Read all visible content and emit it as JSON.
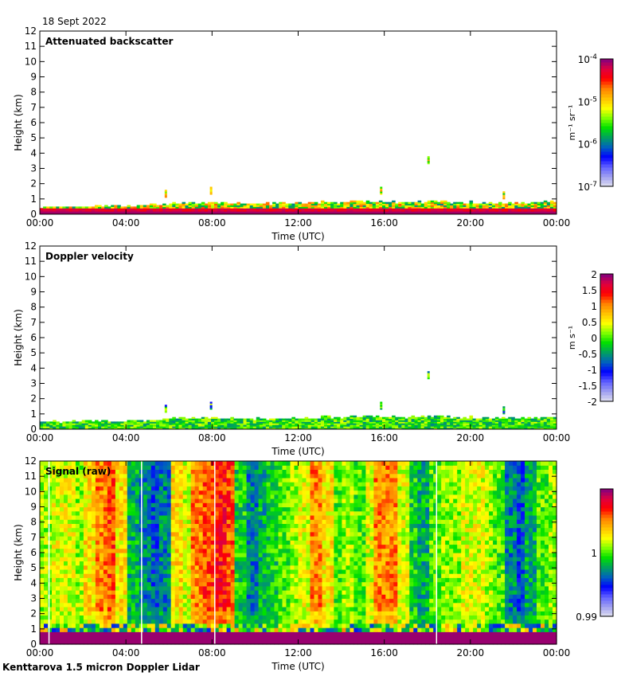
{
  "date_label": "18 Sept 2022",
  "footer": "Kenttarova 1.5 micron Doppler Lidar",
  "colors": {
    "colormap_high_to_low": [
      "#800080",
      "#e00040",
      "#ff0000",
      "#ff8000",
      "#ffc000",
      "#ffff00",
      "#80ff00",
      "#00e000",
      "#00a060",
      "#0060c0",
      "#0000ff",
      "#6060ff",
      "#a0a0f0",
      "#e0e0f0"
    ]
  },
  "chart_data": [
    {
      "type": "heatmap",
      "title": "Attenuated backscatter",
      "xlabel": "Time (UTC)",
      "ylabel": "Height (km)",
      "xticks": [
        "00:00",
        "04:00",
        "08:00",
        "12:00",
        "16:00",
        "20:00",
        "00:00"
      ],
      "yticks": [
        "0",
        "1",
        "2",
        "3",
        "4",
        "5",
        "6",
        "7",
        "8",
        "9",
        "10",
        "11",
        "12"
      ],
      "ylim": [
        0,
        12
      ],
      "xlim_hours": [
        0,
        24
      ],
      "colorbar": {
        "scale": "log",
        "range": [
          1e-07,
          0.0001
        ],
        "ticks": [
          "10-7",
          "10-6",
          "10-5",
          "10-4"
        ],
        "unit": "m-1 sr-1"
      },
      "boundary_layer_top_km_hourly": [
        0.45,
        0.45,
        0.5,
        0.5,
        0.55,
        0.6,
        0.7,
        0.7,
        0.7,
        0.65,
        0.65,
        0.7,
        0.7,
        0.75,
        0.8,
        0.8,
        0.75,
        0.75,
        0.8,
        0.75,
        0.7,
        0.7,
        0.7,
        0.75
      ],
      "cloud_features": [
        {
          "time_h": 5.8,
          "top_km": 1.6
        },
        {
          "time_h": 7.9,
          "top_km": 1.8
        },
        {
          "time_h": 15.8,
          "top_km": 1.8
        },
        {
          "time_h": 18.0,
          "top_km": 3.8
        },
        {
          "time_h": 21.5,
          "top_km": 1.5
        }
      ]
    },
    {
      "type": "heatmap",
      "title": "Doppler velocity",
      "xlabel": "Time (UTC)",
      "ylabel": "Height (km)",
      "xticks": [
        "00:00",
        "04:00",
        "08:00",
        "12:00",
        "16:00",
        "20:00",
        "00:00"
      ],
      "yticks": [
        "0",
        "1",
        "2",
        "3",
        "4",
        "5",
        "6",
        "7",
        "8",
        "9",
        "10",
        "11",
        "12"
      ],
      "ylim": [
        0,
        12
      ],
      "colorbar": {
        "scale": "linear",
        "range": [
          -2,
          2
        ],
        "ticks": [
          "-2",
          "-1.5",
          "-1",
          "-0.5",
          "0",
          "0.5",
          "1",
          "1.5",
          "2"
        ],
        "unit": "m s-1"
      }
    },
    {
      "type": "heatmap",
      "title": "Signal (raw)",
      "xlabel": "Time (UTC)",
      "ylabel": "Height (km)",
      "xticks": [
        "00:00",
        "04:00",
        "08:00",
        "12:00",
        "16:00",
        "20:00",
        "00:00"
      ],
      "yticks": [
        "0",
        "1",
        "2",
        "3",
        "4",
        "5",
        "6",
        "7",
        "8",
        "9",
        "10",
        "11",
        "12"
      ],
      "ylim": [
        0,
        12
      ],
      "colorbar": {
        "scale": "linear",
        "range": [
          0.99,
          1.01
        ],
        "ticks": [
          "0.99",
          "1"
        ]
      },
      "half_hourly_mean_signal": [
        1.001,
        1.002,
        1.002,
        1.001,
        1.003,
        1.005,
        1.006,
        1.003,
        0.998,
        0.997,
        0.996,
        0.997,
        1.003,
        1.002,
        1.005,
        1.006,
        1.007,
        1.006,
        0.999,
        0.997,
        0.998,
        0.999,
        1.0,
        1.001,
        1.002,
        1.005,
        1.003,
        1.0,
        1.001,
        1.0,
        1.002,
        1.005,
        1.005,
        1.002,
        0.999,
        0.998,
        1.0,
        1.001,
        1.001,
        1.002,
        1.002,
        1.001,
        1.0,
        0.997,
        0.996,
        0.998,
        1.0,
        1.001
      ]
    }
  ]
}
